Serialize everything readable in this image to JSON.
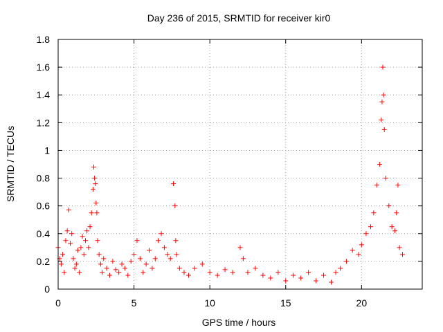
{
  "chart_data": {
    "type": "scatter",
    "title": "Day 236 of 2015, SRMTID for receiver kir0",
    "xlabel": "GPS time / hours",
    "ylabel": "SRMTID / TECUs",
    "xlim": [
      0,
      24
    ],
    "ylim": [
      0,
      1.8
    ],
    "xticks": [
      0,
      5,
      10,
      15,
      20
    ],
    "xtick_labels": [
      "0",
      "5",
      "10",
      "15",
      "20"
    ],
    "yticks": [
      0,
      0.2,
      0.4,
      0.6,
      0.8,
      1,
      1.2,
      1.4,
      1.6,
      1.8
    ],
    "ytick_labels": [
      "0",
      "0.2",
      "0.4",
      "0.6",
      "0.8",
      "1",
      "1.2",
      "1.4",
      "1.6",
      "1.8"
    ],
    "grid": true,
    "marker": "+",
    "color": "#ff0000",
    "series": [
      {
        "name": "kir0",
        "x": [
          0.0,
          0.1,
          0.2,
          0.3,
          0.4,
          0.5,
          0.6,
          0.7,
          0.8,
          0.9,
          1.0,
          1.1,
          1.2,
          1.3,
          1.4,
          1.5,
          1.6,
          1.7,
          1.8,
          1.9,
          2.0,
          2.1,
          2.2,
          2.3,
          2.35,
          2.4,
          2.45,
          2.5,
          2.55,
          2.6,
          2.7,
          2.8,
          2.9,
          3.0,
          3.2,
          3.4,
          3.6,
          3.8,
          4.0,
          4.2,
          4.4,
          4.6,
          4.8,
          5.0,
          5.2,
          5.4,
          5.6,
          5.8,
          6.0,
          6.2,
          6.4,
          6.6,
          6.8,
          7.0,
          7.2,
          7.4,
          7.6,
          7.7,
          7.75,
          7.8,
          8.0,
          8.3,
          8.6,
          9.0,
          9.5,
          10.0,
          10.5,
          11.0,
          11.5,
          12.0,
          12.2,
          12.5,
          13.0,
          13.5,
          14.0,
          14.5,
          15.0,
          15.5,
          16.0,
          16.5,
          17.0,
          17.5,
          18.0,
          18.3,
          18.6,
          19.0,
          19.4,
          19.8,
          20.0,
          20.3,
          20.6,
          20.8,
          21.0,
          21.2,
          21.3,
          21.35,
          21.4,
          21.45,
          21.5,
          21.6,
          21.8,
          22.0,
          22.2,
          22.3,
          22.4,
          22.5,
          22.7
        ],
        "y": [
          0.3,
          0.22,
          0.18,
          0.25,
          0.12,
          0.35,
          0.42,
          0.57,
          0.33,
          0.4,
          0.22,
          0.15,
          0.18,
          0.28,
          0.12,
          0.3,
          0.38,
          0.25,
          0.35,
          0.42,
          0.3,
          0.45,
          0.55,
          0.72,
          0.88,
          0.8,
          0.76,
          0.62,
          0.55,
          0.35,
          0.25,
          0.18,
          0.12,
          0.22,
          0.15,
          0.1,
          0.2,
          0.14,
          0.12,
          0.18,
          0.15,
          0.1,
          0.2,
          0.25,
          0.35,
          0.22,
          0.12,
          0.18,
          0.28,
          0.15,
          0.22,
          0.35,
          0.4,
          0.3,
          0.25,
          0.22,
          0.76,
          0.6,
          0.35,
          0.25,
          0.15,
          0.12,
          0.1,
          0.15,
          0.18,
          0.12,
          0.1,
          0.14,
          0.12,
          0.3,
          0.22,
          0.12,
          0.15,
          0.1,
          0.08,
          0.12,
          0.06,
          0.1,
          0.08,
          0.12,
          0.06,
          0.1,
          0.05,
          0.12,
          0.15,
          0.2,
          0.28,
          0.25,
          0.32,
          0.4,
          0.45,
          0.55,
          0.75,
          0.9,
          1.22,
          1.35,
          1.6,
          1.4,
          1.15,
          0.8,
          0.6,
          0.45,
          0.42,
          0.55,
          0.75,
          0.3,
          0.25
        ]
      }
    ]
  }
}
